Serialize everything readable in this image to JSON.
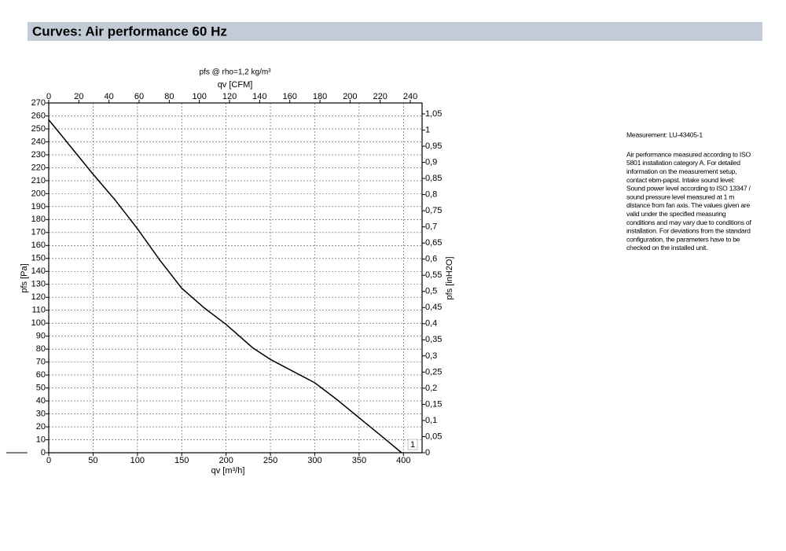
{
  "header": {
    "title": "Curves: Air performance 60 Hz"
  },
  "chart_data": {
    "type": "line",
    "title": "pfs @ rho=1,2 kg/m³",
    "x_label": "qv [m³/h]",
    "x2_label": "qv [CFM]",
    "y_label": "pfs [Pa]",
    "y2_label": "pfs [inH2O]",
    "x": [
      0,
      25,
      50,
      75,
      100,
      125,
      150,
      175,
      200,
      230,
      250,
      275,
      300,
      325,
      350,
      375,
      398
    ],
    "series": [
      {
        "name": "1",
        "color": "#000000",
        "values": [
          257,
          236,
          215,
          195,
          173,
          149,
          127,
          112,
          99,
          81,
          72,
          63,
          54,
          41,
          27,
          13,
          0
        ]
      }
    ],
    "xlim": [
      0,
      421
    ],
    "xticks": [
      0,
      50,
      100,
      150,
      200,
      250,
      300,
      350,
      400
    ],
    "x2lim": [
      0,
      247.8
    ],
    "x2ticks": [
      0,
      20,
      40,
      60,
      80,
      100,
      120,
      140,
      160,
      180,
      200,
      220,
      240
    ],
    "ylim": [
      0,
      270
    ],
    "yticks": [
      0,
      10,
      20,
      30,
      40,
      50,
      60,
      70,
      80,
      90,
      100,
      110,
      120,
      130,
      140,
      150,
      160,
      170,
      180,
      190,
      200,
      210,
      220,
      230,
      240,
      250,
      260,
      270
    ],
    "y2lim": [
      0,
      1.084
    ],
    "y2ticks": [
      0,
      {
        "value": 0.05,
        "label": "0,05"
      },
      {
        "value": 0.1,
        "label": "0,1"
      },
      {
        "value": 0.15,
        "label": "0,15"
      },
      {
        "value": 0.2,
        "label": "0,2"
      },
      {
        "value": 0.25,
        "label": "0,25"
      },
      {
        "value": 0.3,
        "label": "0,3"
      },
      {
        "value": 0.35,
        "label": "0,35"
      },
      {
        "value": 0.4,
        "label": "0,4"
      },
      {
        "value": 0.45,
        "label": "0,45"
      },
      {
        "value": 0.5,
        "label": "0,5"
      },
      {
        "value": 0.55,
        "label": "0,55"
      },
      {
        "value": 0.6,
        "label": "0,6"
      },
      {
        "value": 0.65,
        "label": "0,65"
      },
      {
        "value": 0.7,
        "label": "0,7"
      },
      {
        "value": 0.75,
        "label": "0,75"
      },
      {
        "value": 0.8,
        "label": "0,8"
      },
      {
        "value": 0.85,
        "label": "0,85"
      },
      {
        "value": 0.9,
        "label": "0,9"
      },
      {
        "value": 0.95,
        "label": "0,95"
      },
      1,
      {
        "value": 1.05,
        "label": "1,05"
      }
    ],
    "grid": true
  },
  "notes": {
    "measurement": "Measurement: LU-43405-1",
    "lines": [
      "Air performance measured according to ISO",
      "5801 installation category A. For detailed",
      "information on the measurement setup,",
      "contact ebm-papst. Intake sound level:",
      "Sound power level according to ISO 13347 /",
      "sound pressure level measured at 1 m",
      "distance from fan axis. The values given are",
      "valid under the specified measuring",
      "conditions and may vary due to conditions of",
      "installation. For deviations from the standard",
      "configuration, the parameters have to be",
      "checked on the installed unit."
    ]
  }
}
